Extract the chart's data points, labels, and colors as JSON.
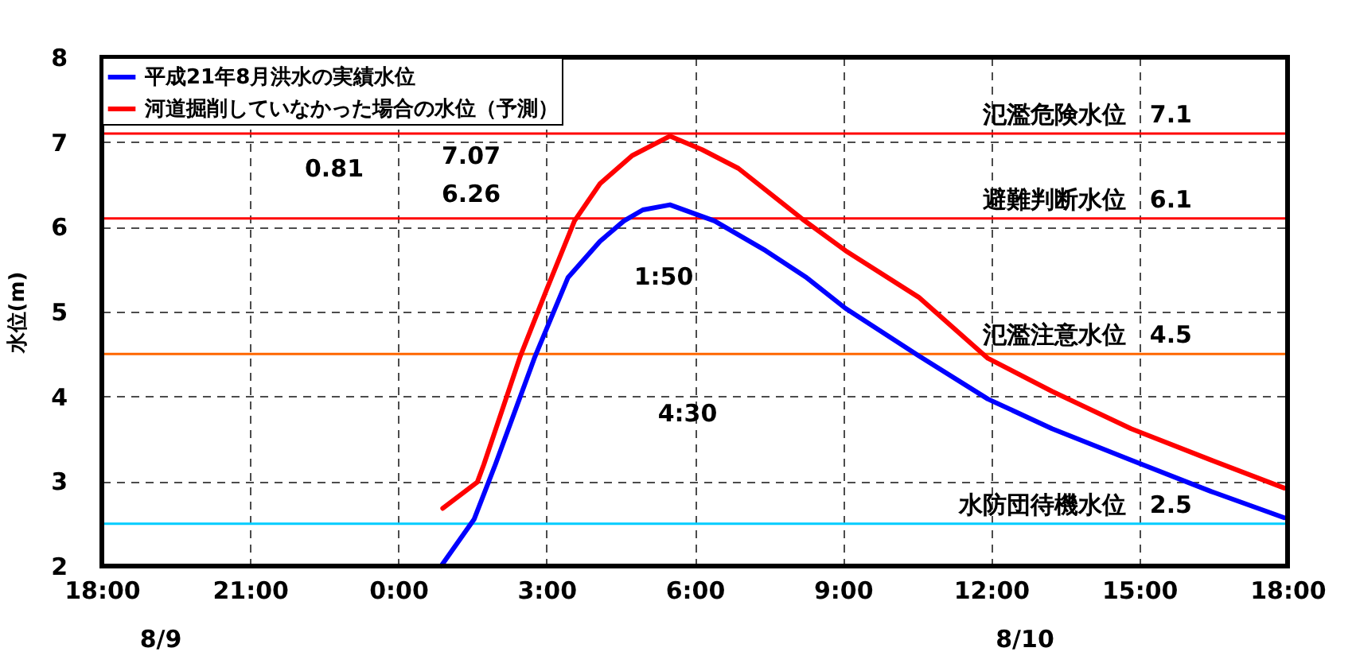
{
  "chart_data": {
    "type": "line",
    "ylabel": "水位(m)",
    "xlim": [
      "--08-09T18:00",
      "--08-10T18:00"
    ],
    "xticks": [
      {
        "value": "--08-09T18:00",
        "label": "18:00"
      },
      {
        "value": "--08-09T21:00",
        "label": "21:00"
      },
      {
        "value": "--08-10T00:00",
        "label": "0:00"
      },
      {
        "value": "--08-10T03:00",
        "label": "3:00"
      },
      {
        "value": "--08-10T06:00",
        "label": "6:00"
      },
      {
        "value": "--08-10T09:00",
        "label": "9:00"
      },
      {
        "value": "--08-10T12:00",
        "label": "12:00"
      },
      {
        "value": "--08-10T15:00",
        "label": "15:00"
      },
      {
        "value": "--08-10T18:00",
        "label": "18:00"
      }
    ],
    "ylim": [
      2,
      8
    ],
    "yticks": [
      2,
      3,
      4,
      5,
      6,
      7,
      8
    ],
    "grid": true,
    "legend": "top left",
    "line_style": "solid",
    "marker": "none",
    "series": [
      {
        "name": "平成21年8月洪水の実績水位",
        "color": "#0000ff",
        "x": [
          "--08-10T00:52",
          "--08-10T01:32",
          "--08-10T01:58",
          "--08-10T02:46",
          "--08-10T03:26",
          "--08-10T04:05",
          "--08-10T04:34",
          "--08-10T04:57",
          "--08-10T05:30",
          "--08-10T06:24",
          "--08-10T07:26",
          "--08-10T08:16",
          "--08-10T09:03",
          "--08-10T10:32",
          "--08-10T11:56",
          "--08-10T13:14",
          "--08-10T14:50",
          "--08-10T16:27",
          "--08-10T17:56"
        ],
        "values": [
          2.0,
          2.55,
          3.2,
          4.47,
          5.4,
          5.83,
          6.07,
          6.2,
          6.26,
          6.07,
          5.72,
          5.4,
          5.04,
          4.48,
          3.97,
          3.62,
          3.25,
          2.88,
          2.57
        ]
      },
      {
        "name": "河道掘削していなかった場合の水位（予測）",
        "color": "#ff0000",
        "x": [
          "--08-10T00:54",
          "--08-10T01:36",
          "--08-10T01:44",
          "--08-10T02:28",
          "--08-10T03:01",
          "--08-10T03:34",
          "--08-10T04:05",
          "--08-10T04:44",
          "--08-10T05:30",
          "--08-10T06:09",
          "--08-10T06:53",
          "--08-10T08:11",
          "--08-10T09:03",
          "--08-10T10:32",
          "--08-10T11:56",
          "--08-10T13:14",
          "--08-10T14:50",
          "--08-10T16:27",
          "--08-10T17:56"
        ],
        "values": [
          2.68,
          2.99,
          3.2,
          4.47,
          5.28,
          6.07,
          6.51,
          6.84,
          7.07,
          6.91,
          6.69,
          6.09,
          5.72,
          5.17,
          4.45,
          4.06,
          3.62,
          3.25,
          2.92
        ]
      }
    ],
    "ref_lines": [
      {
        "axis": "y",
        "value": 7.1,
        "label": "氾濫危険水位　7.1",
        "color": "#ff0000"
      },
      {
        "axis": "y",
        "value": 6.1,
        "label": "避難判断水位　6.1",
        "color": "#ff0000"
      },
      {
        "axis": "y",
        "value": 4.5,
        "label": "氾濫注意水位　4.5",
        "color": "#ff6600"
      },
      {
        "axis": "y",
        "value": 2.5,
        "label": "水防団待機水位　2.5",
        "color": "#00ccff"
      }
    ],
    "annotations": [
      "7.07",
      "6.26",
      "0.81",
      "1:50",
      "4:30",
      "8/9",
      "8/10"
    ]
  }
}
